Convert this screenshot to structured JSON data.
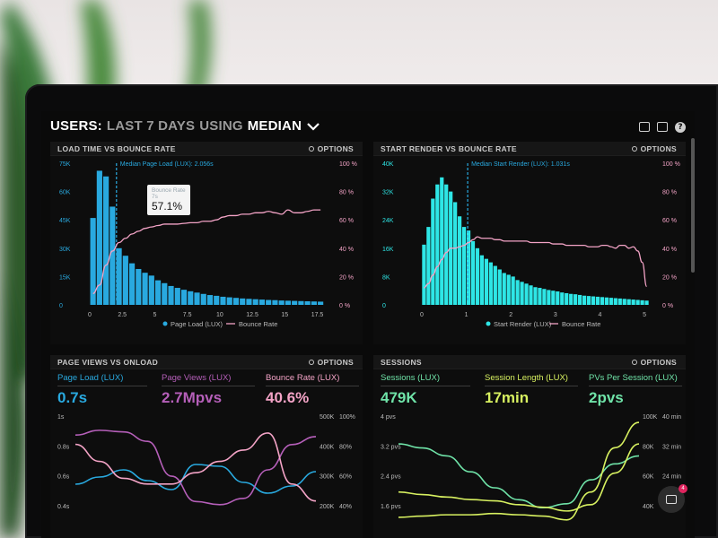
{
  "header": {
    "title_prefix": "USERS:",
    "title_light1": "LAST 7 DAYS",
    "title_light2": "USING",
    "title_metric": "MEDIAN",
    "icons": [
      "monitor-icon",
      "image-icon",
      "help-icon"
    ],
    "help_glyph": "?"
  },
  "colors": {
    "blue": "#29a9df",
    "cyan": "#2ee6e6",
    "pink": "#f3a3c6",
    "purple": "#b55fb9",
    "green": "#6fe3a8",
    "lime": "#d7f060"
  },
  "panels": {
    "load_time": {
      "title": "LOAD TIME VS BOUNCE RATE",
      "options": "OPTIONS",
      "median_label": "Median Page Load (LUX): 2.056s",
      "tooltip_label": "Bounce Rate",
      "tooltip_sub": "7s",
      "tooltip_value": "57.1%",
      "y_left": [
        "75K",
        "60K",
        "45K",
        "30K",
        "15K",
        "0"
      ],
      "y_right": [
        "100 %",
        "80 %",
        "60 %",
        "40 %",
        "20 %",
        "0 %"
      ],
      "x_ticks": [
        "0",
        "2.5",
        "5",
        "7.5",
        "10",
        "12.5",
        "15",
        "17.5"
      ],
      "legend_bar": "Page Load (LUX)",
      "legend_line": "Bounce Rate"
    },
    "start_render": {
      "title": "START RENDER VS BOUNCE RATE",
      "options": "OPTIONS",
      "median_label": "Median Start Render (LUX): 1.031s",
      "y_left": [
        "40K",
        "32K",
        "24K",
        "16K",
        "8K",
        "0"
      ],
      "y_right": [
        "100 %",
        "80 %",
        "60 %",
        "40 %",
        "20 %",
        "0 %"
      ],
      "x_ticks": [
        "0",
        "1",
        "2",
        "3",
        "4",
        "5"
      ],
      "legend_bar": "Start Render (LUX)",
      "legend_line": "Bounce Rate"
    },
    "page_views": {
      "title": "PAGE VIEWS VS ONLOAD",
      "options": "OPTIONS",
      "stats": [
        {
          "label": "Page Load (LUX)",
          "value": "0.7s"
        },
        {
          "label": "Page Views (LUX)",
          "value": "2.7Mpvs"
        },
        {
          "label": "Bounce Rate (LUX)",
          "value": "40.6%"
        }
      ],
      "y_left": [
        "1s",
        "0.8s",
        "0.6s",
        "0.4s"
      ],
      "y_mid": [
        "500K",
        "400K",
        "300K",
        "200K"
      ],
      "y_right": [
        "100%",
        "80%",
        "60%",
        "40%"
      ]
    },
    "sessions": {
      "title": "SESSIONS",
      "options": "OPTIONS",
      "stats": [
        {
          "label": "Sessions (LUX)",
          "value": "479K"
        },
        {
          "label": "Session Length (LUX)",
          "value": "17min"
        },
        {
          "label": "PVs Per Session (LUX)",
          "value": "2pvs"
        }
      ],
      "y_left": [
        "4 pvs",
        "3.2 pvs",
        "2.4 pvs",
        "1.6 pvs"
      ],
      "y_mid": [
        "100K",
        "80K",
        "60K",
        "40K"
      ],
      "y_right": [
        "40 min",
        "32 min",
        "24 min",
        "16 min"
      ]
    }
  },
  "chat": {
    "badge": "4"
  },
  "chart_data": [
    {
      "type": "bar",
      "title": "LOAD TIME VS BOUNCE RATE",
      "x": [
        0.25,
        0.75,
        1.25,
        1.75,
        2.25,
        2.75,
        3.25,
        3.75,
        4.25,
        4.75,
        5.25,
        5.75,
        6.25,
        6.75,
        7.25,
        7.75,
        8.25,
        8.75,
        9.25,
        9.75,
        10.25,
        10.75,
        11.25,
        11.75,
        12.25,
        12.75,
        13.25,
        13.75,
        14.25,
        14.75,
        15.25,
        15.75,
        16.25,
        16.75,
        17.25,
        17.75
      ],
      "series": [
        {
          "name": "Page Load (LUX)",
          "axis": "left",
          "values": [
            46000,
            71000,
            68000,
            52000,
            30000,
            26000,
            22000,
            19000,
            17000,
            15500,
            13000,
            11500,
            10000,
            9000,
            8000,
            7200,
            6500,
            5800,
            5200,
            4800,
            4300,
            4000,
            3700,
            3400,
            3200,
            3000,
            2800,
            2600,
            2500,
            2300,
            2200,
            2100,
            2000,
            1900,
            1800,
            1700
          ]
        },
        {
          "name": "Bounce Rate",
          "axis": "right",
          "values": [
            8,
            14,
            28,
            38,
            44,
            47,
            50,
            52,
            54,
            55,
            56,
            57,
            57,
            57,
            57.5,
            58,
            58,
            59,
            59,
            60,
            62,
            63,
            63,
            64,
            64,
            65,
            65,
            66,
            65,
            64,
            67,
            65,
            65,
            66,
            67,
            67
          ]
        }
      ],
      "ylim": [
        0,
        75000
      ],
      "y2lim": [
        0,
        100
      ],
      "xlim": [
        0,
        18.5
      ],
      "median": 2.056
    },
    {
      "type": "bar",
      "title": "START RENDER VS BOUNCE RATE",
      "x": [
        0.05,
        0.15,
        0.25,
        0.35,
        0.45,
        0.55,
        0.65,
        0.75,
        0.85,
        0.95,
        1.05,
        1.15,
        1.25,
        1.35,
        1.45,
        1.55,
        1.65,
        1.75,
        1.85,
        1.95,
        2.05,
        2.15,
        2.25,
        2.35,
        2.45,
        2.55,
        2.65,
        2.75,
        2.85,
        2.95,
        3.05,
        3.15,
        3.25,
        3.35,
        3.45,
        3.55,
        3.65,
        3.75,
        3.85,
        3.95,
        4.05,
        4.15,
        4.25,
        4.35,
        4.45,
        4.55,
        4.65,
        4.75,
        4.85,
        4.95,
        5.05
      ],
      "series": [
        {
          "name": "Start Render (LUX)",
          "axis": "left",
          "values": [
            17000,
            22000,
            30000,
            34000,
            36000,
            34000,
            32000,
            29000,
            25000,
            22000,
            21000,
            18000,
            16000,
            14000,
            13000,
            12000,
            11000,
            10000,
            9000,
            8500,
            8000,
            7000,
            6500,
            6000,
            5500,
            5000,
            4800,
            4500,
            4200,
            4000,
            3800,
            3500,
            3300,
            3100,
            3000,
            2800,
            2600,
            2500,
            2400,
            2300,
            2200,
            2100,
            2000,
            1900,
            1800,
            1700,
            1600,
            1500,
            1400,
            1300,
            1200
          ]
        },
        {
          "name": "Bounce Rate",
          "axis": "right",
          "values": [
            12,
            15,
            21,
            27,
            32,
            37,
            40,
            40,
            41,
            42,
            44,
            46,
            48,
            47,
            47,
            47,
            46,
            46,
            45,
            45,
            45,
            45,
            45,
            45,
            44,
            44,
            44,
            44,
            44,
            43,
            43,
            43,
            42,
            42,
            42,
            42,
            42,
            41,
            41,
            41,
            42,
            42,
            41,
            40,
            42,
            42,
            40,
            41,
            38,
            30,
            13
          ]
        }
      ],
      "ylim": [
        0,
        40000
      ],
      "y2lim": [
        0,
        100
      ],
      "xlim": [
        -0.2,
        5.2
      ],
      "median": 1.031
    },
    {
      "type": "line",
      "title": "PAGE VIEWS VS ONLOAD",
      "x": [
        0,
        1,
        2,
        3,
        4,
        5,
        6,
        7,
        8,
        9,
        10
      ],
      "series": [
        {
          "name": "Page Load (LUX)",
          "values": [
            0.62,
            0.66,
            0.7,
            0.64,
            0.59,
            0.73,
            0.72,
            0.63,
            0.57,
            0.61,
            0.69
          ]
        },
        {
          "name": "Page Views (LUX)",
          "values": [
            460000,
            475000,
            470000,
            440000,
            330000,
            250000,
            240000,
            260000,
            350000,
            430000,
            455000
          ]
        },
        {
          "name": "Bounce Rate (LUX)",
          "values": [
            47,
            44,
            41,
            40,
            40,
            42,
            44,
            46,
            49,
            40,
            37
          ]
        }
      ]
    },
    {
      "type": "line",
      "title": "SESSIONS",
      "x": [
        0,
        1,
        2,
        3,
        4,
        5,
        6,
        7,
        8,
        9,
        10
      ],
      "series": [
        {
          "name": "Sessions (LUX)",
          "values": [
            3.3,
            3.2,
            3.0,
            2.6,
            2.2,
            1.9,
            1.7,
            1.8,
            2.4,
            2.8,
            3.0
          ]
        },
        {
          "name": "Session Length (LUX)",
          "values": [
            40,
            38,
            36,
            34,
            33,
            30,
            28,
            25,
            30,
            55,
            78
          ]
        },
        {
          "name": "PVs Per Session (LUX)",
          "values": [
            20,
            21,
            22,
            22,
            23,
            22,
            21,
            18,
            40,
            75,
            95
          ]
        }
      ]
    }
  ]
}
